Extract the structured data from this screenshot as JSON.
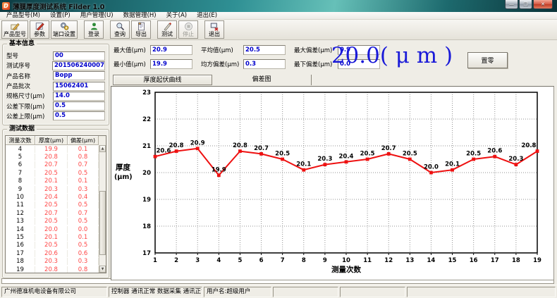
{
  "window": {
    "title": "薄膜厚度测试系统 Filder 1.0",
    "app_icon": "app-logo-d-icon",
    "controls": [
      {
        "name": "minimize",
        "icon": "minimize-icon"
      },
      {
        "name": "maximize",
        "icon": "maximize-icon"
      },
      {
        "name": "close",
        "icon": "close-icon"
      }
    ]
  },
  "menu": {
    "items": [
      "产品型号(M)",
      "设置(P)",
      "用户管理(U)",
      "数据管理(H)",
      "关于(A)",
      "退出(E)"
    ]
  },
  "toolbar": {
    "buttons": [
      {
        "label": "产品型号",
        "icon": "product-model-icon",
        "enabled": true
      },
      {
        "label": "参数",
        "icon": "parameters-icon",
        "enabled": true
      },
      {
        "label": "端口设置",
        "icon": "port-settings-gears-icon",
        "enabled": true
      },
      {
        "label": "登录",
        "icon": "login-user-icon",
        "enabled": true
      },
      {
        "label": "查询",
        "icon": "query-magnifier-icon",
        "enabled": true
      },
      {
        "label": "导出",
        "icon": "export-document-icon",
        "enabled": true
      },
      {
        "label": "测试",
        "icon": "test-pen-icon",
        "enabled": true
      },
      {
        "label": "停止",
        "icon": "stop-icon",
        "enabled": false
      },
      {
        "label": "退出",
        "icon": "exit-icon",
        "enabled": true
      }
    ]
  },
  "basic_info": {
    "title": "基本信息",
    "fields": [
      {
        "label": "型号",
        "value": "00"
      },
      {
        "label": "测试序号",
        "value": "201506240007"
      },
      {
        "label": "产品名称",
        "value": "Bopp"
      },
      {
        "label": "产品批次",
        "value": "15062401"
      },
      {
        "label": "规格尺寸(μm)",
        "value": "14.0"
      },
      {
        "label": "公差下限(μm)",
        "value": "0.5"
      },
      {
        "label": "公差上限(μm)",
        "value": "0.5"
      }
    ]
  },
  "test_data": {
    "title": "测试数据",
    "columns": [
      "测量次数",
      "厚度(μm)",
      "偏差(μm)"
    ],
    "rows": [
      [
        "4",
        "19.9",
        "0.1"
      ],
      [
        "5",
        "20.8",
        "0.8"
      ],
      [
        "6",
        "20.7",
        "0.7"
      ],
      [
        "7",
        "20.5",
        "0.5"
      ],
      [
        "8",
        "20.1",
        "0.1"
      ],
      [
        "9",
        "20.3",
        "0.3"
      ],
      [
        "10",
        "20.4",
        "0.4"
      ],
      [
        "11",
        "20.5",
        "0.5"
      ],
      [
        "12",
        "20.7",
        "0.7"
      ],
      [
        "13",
        "20.5",
        "0.5"
      ],
      [
        "14",
        "20.0",
        "0.0"
      ],
      [
        "15",
        "20.1",
        "0.1"
      ],
      [
        "16",
        "20.5",
        "0.5"
      ],
      [
        "17",
        "20.6",
        "0.6"
      ],
      [
        "18",
        "20.3",
        "0.3"
      ],
      [
        "19",
        "20.8",
        "0.8"
      ]
    ]
  },
  "stats": {
    "rows": [
      [
        {
          "label": "最大值(μm)",
          "value": "20.9"
        },
        {
          "label": "平均值(μm)",
          "value": "20.5"
        },
        {
          "label": "最大偏差(μm)",
          "value": "0.9"
        }
      ],
      [
        {
          "label": "最小值(μm)",
          "value": "19.9"
        },
        {
          "label": "均方偏差(μm)",
          "value": "0.3"
        },
        {
          "label": "最下偏差(μm)",
          "value": "0.0"
        }
      ]
    ]
  },
  "readout": {
    "text": "20.0( μ m )",
    "color": "#1a1ad8"
  },
  "controls": {
    "zero_label": "置零"
  },
  "tabs": [
    "厚度起伏曲线",
    "偏差图"
  ],
  "chart_data": {
    "type": "line",
    "x": [
      1,
      2,
      3,
      4,
      5,
      6,
      7,
      8,
      9,
      10,
      11,
      12,
      13,
      14,
      15,
      16,
      17,
      18,
      19
    ],
    "values": [
      20.6,
      20.8,
      20.9,
      19.9,
      20.8,
      20.7,
      20.5,
      20.1,
      20.3,
      20.4,
      20.5,
      20.7,
      20.5,
      20.0,
      20.1,
      20.5,
      20.6,
      20.3,
      20.8
    ],
    "point_labels": [
      "20.6",
      "20.8",
      "20.9",
      "19.9",
      "20.8",
      "20.7",
      "20.5",
      "20.1",
      "20.3",
      "20.4",
      "20.5",
      "20.7",
      "20.5",
      "20.0",
      "20.1",
      "20.5",
      "20.6",
      "20.3",
      "20.8"
    ],
    "xlabel": "测量次数",
    "ylabel_line1": "厚度",
    "ylabel_line2": "(μm)",
    "ylim": [
      17,
      23
    ],
    "yticks": [
      17,
      18,
      19,
      20,
      21,
      22,
      23
    ],
    "grid": true,
    "line_color": "#ee1111",
    "label_color": "#000000"
  },
  "status_bar": {
    "company": "广州德准机电设备有限公司",
    "comm_status": "控制器 通讯正常  数据采集 通讯正常",
    "user": "用户名:超级用户"
  }
}
